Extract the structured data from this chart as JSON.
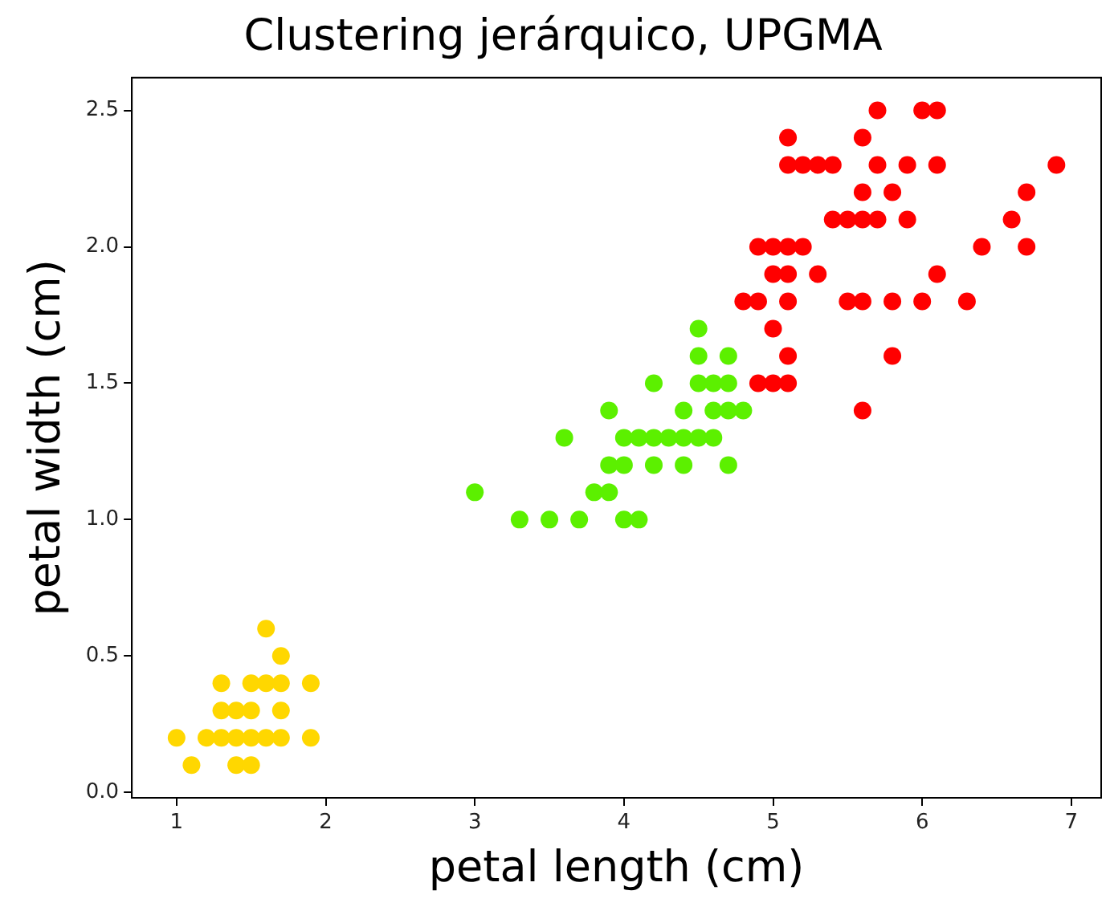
{
  "chart_data": {
    "type": "scatter",
    "title": "Clustering jerárquico, UPGMA",
    "xlabel": "petal length (cm)",
    "ylabel": "petal width (cm)",
    "xlim": [
      0.7,
      7.2
    ],
    "xticks": [
      1,
      2,
      3,
      4,
      5,
      6,
      7
    ],
    "ylim": [
      -0.02,
      2.62
    ],
    "yticks": [
      {
        "value": 0,
        "label": "0.0"
      },
      0.5,
      {
        "value": 1,
        "label": "1.0"
      },
      1.5,
      {
        "value": 2,
        "label": "2.0"
      },
      2.5
    ],
    "grid": false,
    "legend": false,
    "marker": "circle",
    "series": [
      {
        "color": "#ffd700",
        "x": [
          1.6,
          1.7,
          1.3,
          1.5,
          1.6,
          1.7,
          1.9,
          1.3,
          1.4,
          1.5,
          1.7,
          1.0,
          1.2,
          1.3,
          1.4,
          1.5,
          1.6,
          1.7,
          1.9,
          1.1,
          1.4,
          1.5
        ],
        "values": [
          0.6,
          0.5,
          0.4,
          0.4,
          0.4,
          0.4,
          0.4,
          0.3,
          0.3,
          0.3,
          0.3,
          0.2,
          0.2,
          0.2,
          0.2,
          0.2,
          0.2,
          0.2,
          0.2,
          0.1,
          0.1,
          0.1
        ]
      },
      {
        "color": "#5cf000",
        "x": [
          4.5,
          4.5,
          4.7,
          4.2,
          4.5,
          4.6,
          4.7,
          3.9,
          4.4,
          4.6,
          4.7,
          4.8,
          3.6,
          4.0,
          4.1,
          4.2,
          4.3,
          4.4,
          4.5,
          4.6,
          3.9,
          4.0,
          4.2,
          4.4,
          4.7,
          3.0,
          3.8,
          3.9,
          3.3,
          3.5,
          3.7,
          4.0,
          4.1
        ],
        "values": [
          1.7,
          1.6,
          1.6,
          1.5,
          1.5,
          1.5,
          1.5,
          1.4,
          1.4,
          1.4,
          1.4,
          1.4,
          1.3,
          1.3,
          1.3,
          1.3,
          1.3,
          1.3,
          1.3,
          1.3,
          1.2,
          1.2,
          1.2,
          1.2,
          1.2,
          1.1,
          1.1,
          1.1,
          1.0,
          1.0,
          1.0,
          1.0,
          1.0
        ]
      },
      {
        "color": "#ff0000",
        "x": [
          5.7,
          6.0,
          6.1,
          5.1,
          5.6,
          5.1,
          5.2,
          5.3,
          5.4,
          5.7,
          5.9,
          6.1,
          6.9,
          5.6,
          5.8,
          6.7,
          5.4,
          5.5,
          5.6,
          5.7,
          5.9,
          6.6,
          4.9,
          5.0,
          5.1,
          5.2,
          6.4,
          6.7,
          5.0,
          5.1,
          5.3,
          6.1,
          4.8,
          4.9,
          5.1,
          5.5,
          5.6,
          5.8,
          6.0,
          6.3,
          5.0,
          5.1,
          5.8,
          4.9,
          5.0,
          5.1,
          5.6
        ],
        "values": [
          2.5,
          2.5,
          2.5,
          2.4,
          2.4,
          2.3,
          2.3,
          2.3,
          2.3,
          2.3,
          2.3,
          2.3,
          2.3,
          2.2,
          2.2,
          2.2,
          2.1,
          2.1,
          2.1,
          2.1,
          2.1,
          2.1,
          2.0,
          2.0,
          2.0,
          2.0,
          2.0,
          2.0,
          1.9,
          1.9,
          1.9,
          1.9,
          1.8,
          1.8,
          1.8,
          1.8,
          1.8,
          1.8,
          1.8,
          1.8,
          1.7,
          1.6,
          1.6,
          1.5,
          1.5,
          1.5,
          1.4
        ]
      }
    ]
  }
}
